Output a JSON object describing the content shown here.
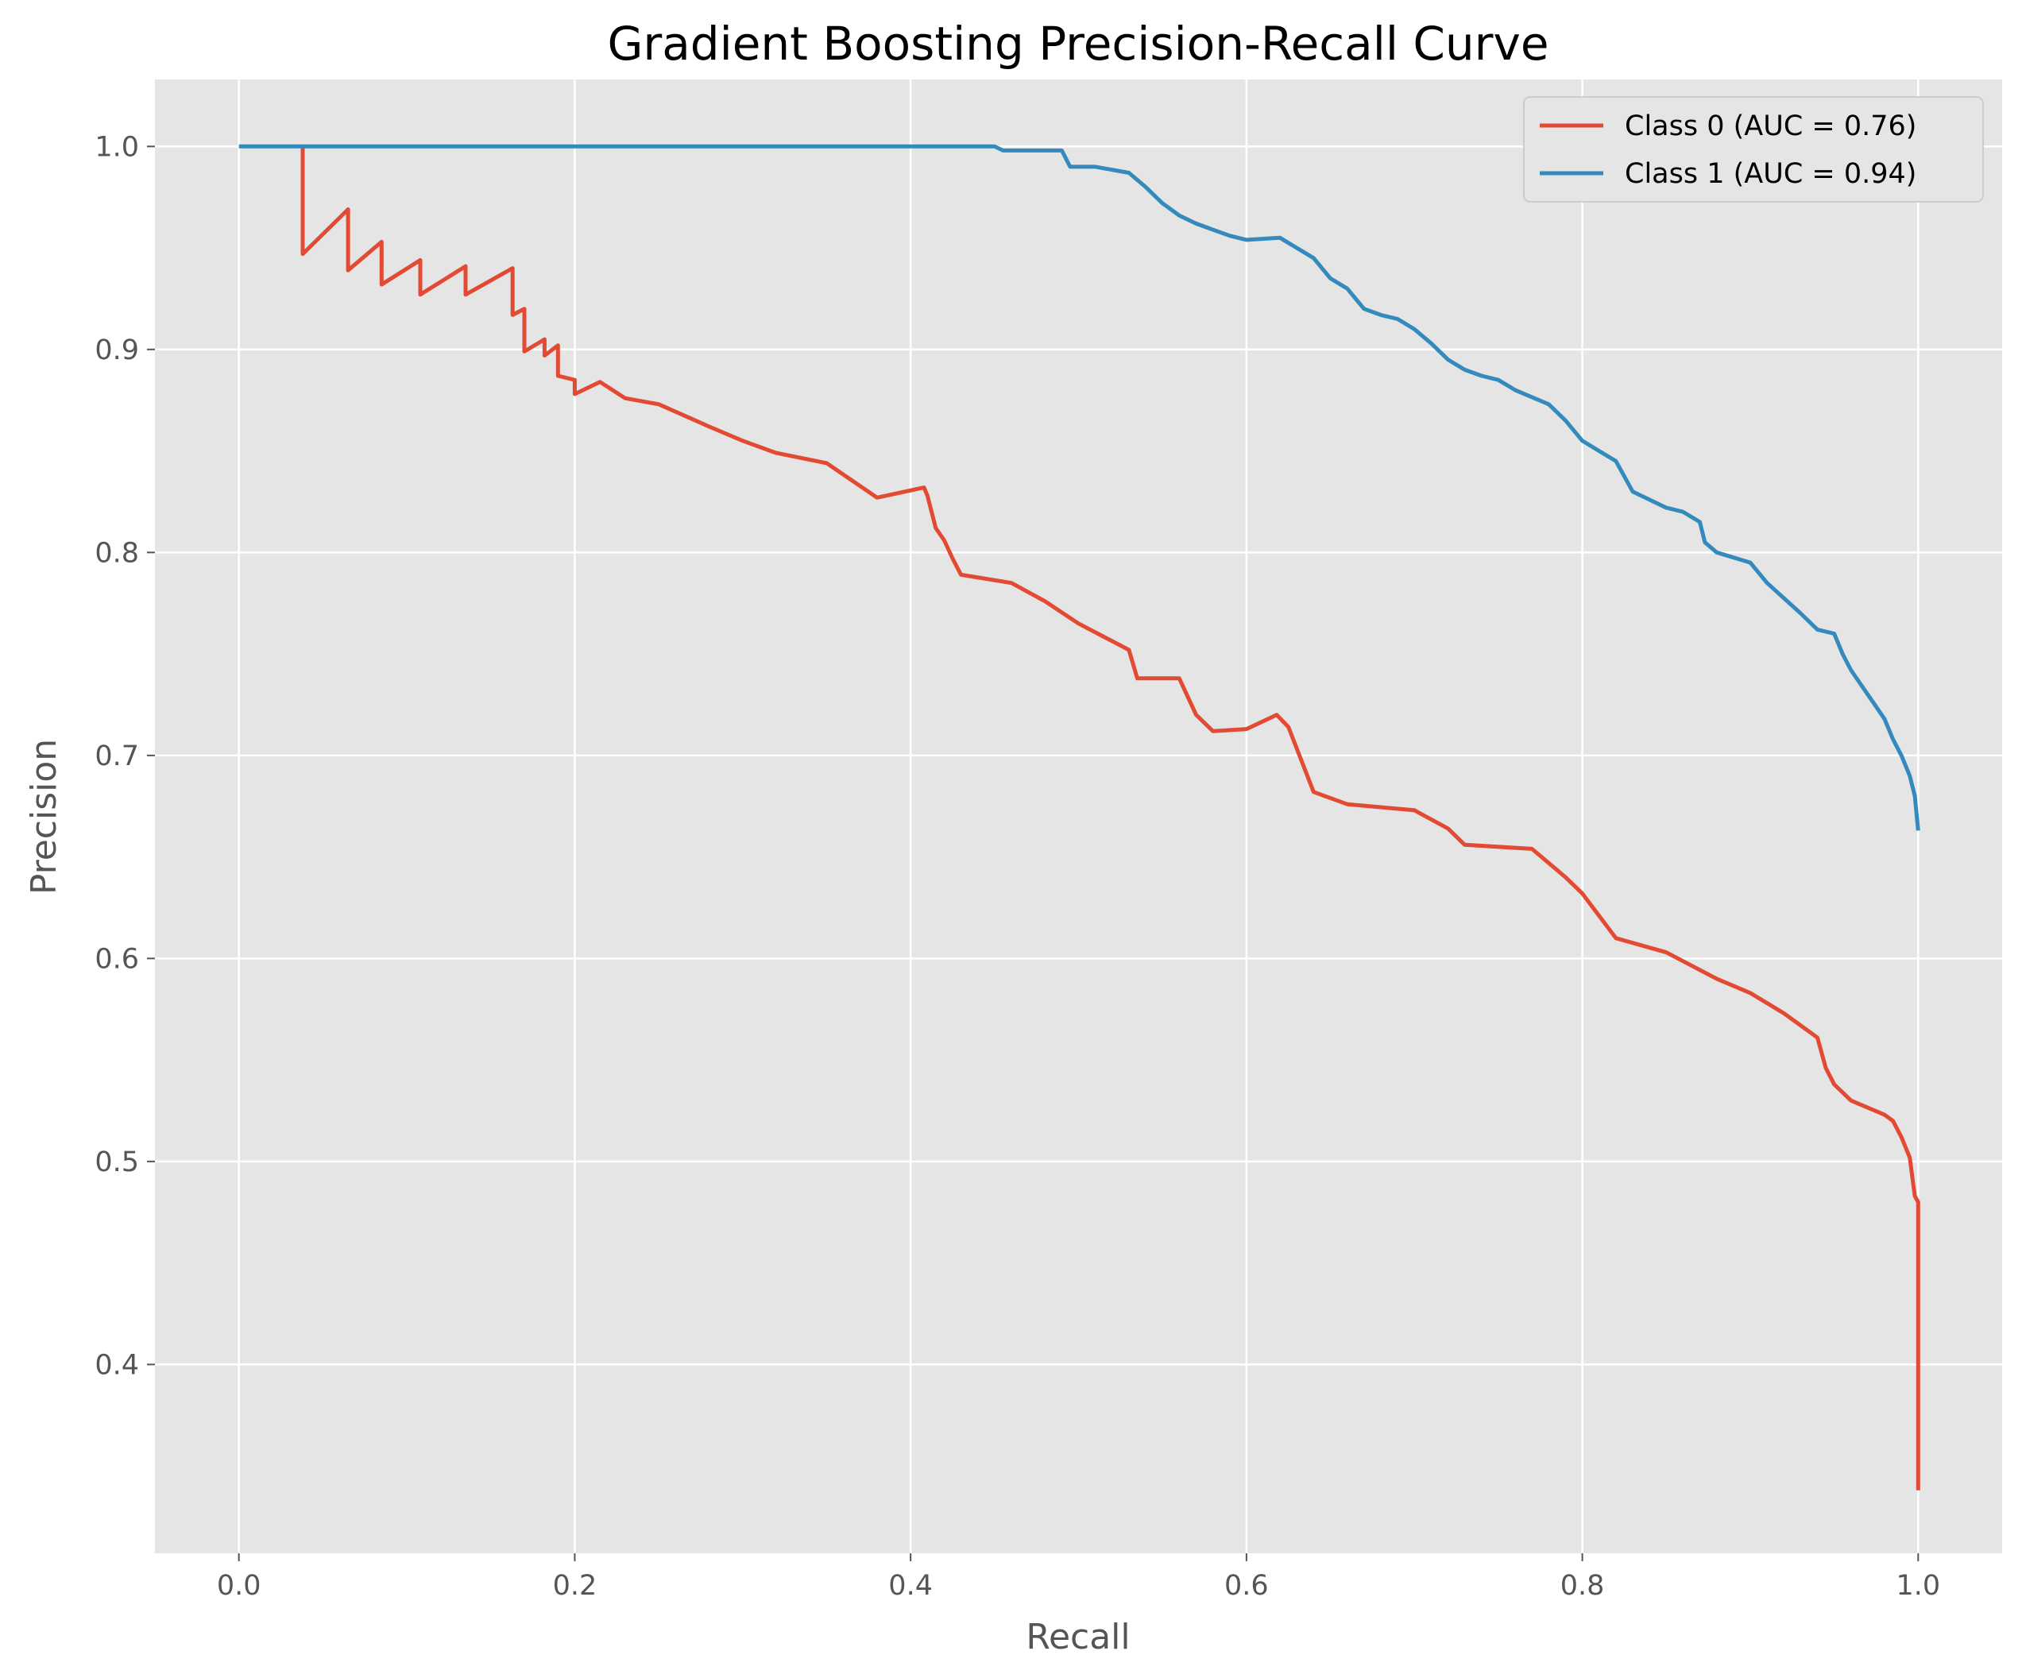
{
  "chart_data": {
    "type": "line",
    "title": "Gradient Boosting Precision-Recall Curve",
    "xlabel": "Recall",
    "ylabel": "Precision",
    "xlim": [
      -0.05,
      1.05
    ],
    "ylim": [
      0.307,
      1.033
    ],
    "xticks": [
      "0.0",
      "0.2",
      "0.4",
      "0.6",
      "0.8",
      "1.0"
    ],
    "yticks": [
      "0.4",
      "0.5",
      "0.6",
      "0.7",
      "0.8",
      "0.9",
      "1.0"
    ],
    "grid": true,
    "legend_position": "top-right",
    "series": [
      {
        "name": "Class 0 (AUC = 0.76)",
        "color": "#E24A33",
        "x": [
          0.038,
          0.038,
          0.038,
          0.065,
          0.065,
          0.085,
          0.085,
          0.108,
          0.108,
          0.135,
          0.135,
          0.163,
          0.163,
          0.17,
          0.17,
          0.182,
          0.182,
          0.19,
          0.19,
          0.2,
          0.2,
          0.215,
          0.23,
          0.25,
          0.28,
          0.3,
          0.32,
          0.35,
          0.38,
          0.408,
          0.41,
          0.415,
          0.42,
          0.425,
          0.43,
          0.46,
          0.48,
          0.5,
          0.53,
          0.535,
          0.56,
          0.57,
          0.58,
          0.6,
          0.618,
          0.625,
          0.64,
          0.66,
          0.7,
          0.72,
          0.73,
          0.77,
          0.79,
          0.8,
          0.82,
          0.85,
          0.88,
          0.9,
          0.92,
          0.94,
          0.945,
          0.95,
          0.96,
          0.98,
          0.985,
          0.99,
          0.995,
          0.998,
          1.0,
          1.0
        ],
        "y": [
          1.0,
          0.947,
          0.947,
          0.969,
          0.939,
          0.953,
          0.932,
          0.944,
          0.927,
          0.941,
          0.927,
          0.94,
          0.917,
          0.92,
          0.899,
          0.905,
          0.897,
          0.902,
          0.887,
          0.885,
          0.878,
          0.884,
          0.876,
          0.873,
          0.862,
          0.855,
          0.849,
          0.844,
          0.827,
          0.832,
          0.828,
          0.812,
          0.806,
          0.797,
          0.789,
          0.785,
          0.776,
          0.765,
          0.752,
          0.738,
          0.738,
          0.72,
          0.712,
          0.713,
          0.72,
          0.714,
          0.682,
          0.676,
          0.673,
          0.664,
          0.656,
          0.654,
          0.64,
          0.632,
          0.61,
          0.603,
          0.59,
          0.583,
          0.573,
          0.561,
          0.546,
          0.538,
          0.53,
          0.523,
          0.52,
          0.512,
          0.502,
          0.483,
          0.48,
          0.338
        ]
      },
      {
        "name": "Class 1 (AUC = 0.94)",
        "color": "#348ABD",
        "x": [
          0.0,
          0.45,
          0.455,
          0.49,
          0.495,
          0.51,
          0.53,
          0.54,
          0.55,
          0.56,
          0.57,
          0.59,
          0.6,
          0.62,
          0.63,
          0.64,
          0.65,
          0.66,
          0.67,
          0.68,
          0.69,
          0.7,
          0.71,
          0.72,
          0.73,
          0.74,
          0.75,
          0.76,
          0.78,
          0.79,
          0.8,
          0.81,
          0.82,
          0.83,
          0.85,
          0.86,
          0.87,
          0.873,
          0.88,
          0.9,
          0.91,
          0.93,
          0.94,
          0.95,
          0.955,
          0.96,
          0.97,
          0.98,
          0.985,
          0.99,
          0.995,
          0.998,
          1.0
        ],
        "y": [
          1.0,
          1.0,
          0.998,
          0.998,
          0.99,
          0.99,
          0.987,
          0.98,
          0.972,
          0.966,
          0.962,
          0.956,
          0.954,
          0.955,
          0.95,
          0.945,
          0.935,
          0.93,
          0.92,
          0.917,
          0.915,
          0.91,
          0.903,
          0.895,
          0.89,
          0.887,
          0.885,
          0.88,
          0.873,
          0.865,
          0.855,
          0.85,
          0.845,
          0.83,
          0.822,
          0.82,
          0.815,
          0.805,
          0.8,
          0.795,
          0.785,
          0.77,
          0.762,
          0.76,
          0.75,
          0.742,
          0.73,
          0.718,
          0.708,
          0.7,
          0.69,
          0.68,
          0.663
        ]
      }
    ]
  }
}
